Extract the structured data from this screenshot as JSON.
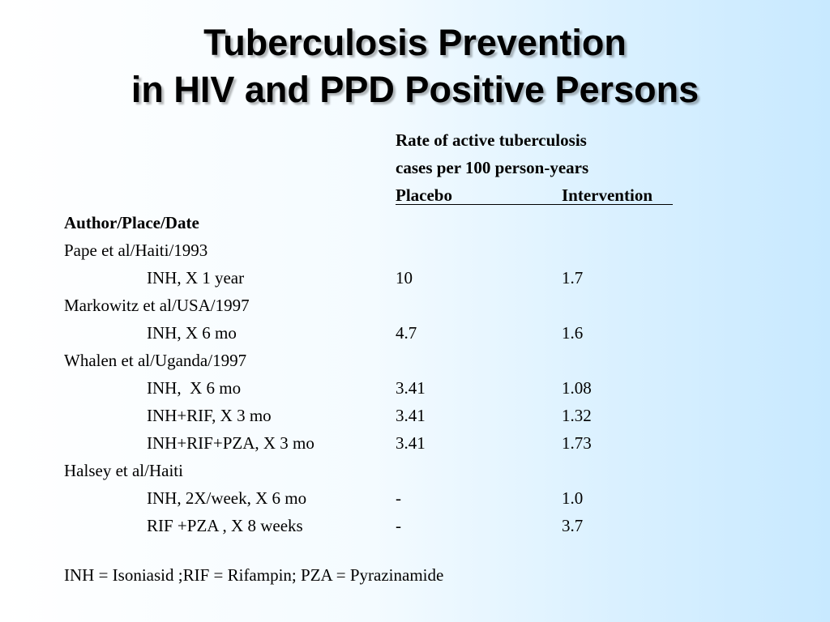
{
  "slide": {
    "title_line1": "Tuberculosis Prevention",
    "title_line2": "in HIV and PPD Positive Persons"
  },
  "table": {
    "rate_header_line1": "Rate of active tuberculosis",
    "rate_header_line2": "cases per 100 person-years",
    "col_placebo": "Placebo",
    "col_intervention": "Intervention",
    "row_header": "Author/Place/Date",
    "studies": [
      {
        "name": "Pape et al/Haiti/1993",
        "regimens": [
          {
            "regimen": "INH, X 1 year",
            "placebo": "10",
            "intervention": "1.7"
          }
        ]
      },
      {
        "name": "Markowitz et al/USA/1997",
        "regimens": [
          {
            "regimen": "INH, X 6 mo",
            "placebo": "4.7",
            "intervention": "1.6"
          }
        ]
      },
      {
        "name": "Whalen et al/Uganda/1997",
        "regimens": [
          {
            "regimen": "INH,  X 6 mo",
            "placebo": "3.41",
            "intervention": "1.08"
          },
          {
            "regimen": "INH+RIF, X 3 mo",
            "placebo": "3.41",
            "intervention": "1.32"
          },
          {
            "regimen": "INH+RIF+PZA, X 3 mo",
            "placebo": "3.41",
            "intervention": "1.73"
          }
        ]
      },
      {
        "name": "Halsey et al/Haiti",
        "regimens": [
          {
            "regimen": "INH, 2X/week, X 6 mo",
            "placebo": "-",
            "intervention": "1.0"
          },
          {
            "regimen": "RIF +PZA , X 8 weeks",
            "placebo": "-",
            "intervention": "3.7"
          }
        ]
      }
    ],
    "footnote": "INH = Isoniasid ;RIF = Rifampin; PZA = Pyrazinamide"
  }
}
